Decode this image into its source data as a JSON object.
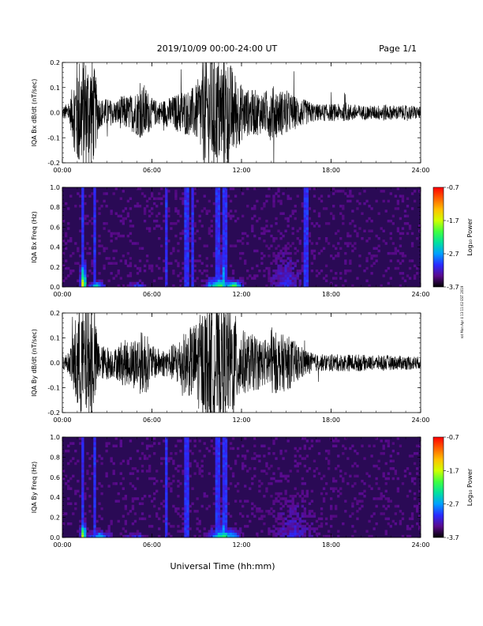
{
  "header": {
    "title": "2019/10/09  00:00-24:00 UT",
    "page_label": "Page 1/1"
  },
  "footer": {
    "xlabel": "Universal Time (hh:mm)",
    "side_note": "rot Mon Apr 4 13:11:02 EST 2019"
  },
  "colors": {
    "trace": "#000000",
    "spectrogram_background": "#2a0a55",
    "colorbar": [
      "#000000",
      "#5a0a8c",
      "#2a2aff",
      "#00a0ff",
      "#00e0a0",
      "#40ff40",
      "#d0ff00",
      "#ffc000",
      "#ff6000",
      "#ff0000"
    ]
  },
  "chart_data": [
    {
      "type": "line",
      "title": "",
      "ylabel": "IQA Bx dB/dt (nT/sec)",
      "xlabel": "",
      "xlim": [
        "00:00",
        "24:00"
      ],
      "ylim": [
        -0.2,
        0.2
      ],
      "x_ticks": [
        "00:00",
        "06:00",
        "12:00",
        "18:00",
        "24:00"
      ],
      "y_ticks": [
        "-0.2",
        "-0.1",
        "0.0",
        "0.1",
        "0.2"
      ],
      "grid": false,
      "series": [
        {
          "x_hours": [
            0,
            0.5,
            1,
            1.5,
            2,
            2.5,
            3,
            3.5,
            4,
            4.5,
            5,
            5.5,
            6,
            6.5,
            7,
            7.5,
            8,
            8.5,
            9,
            9.5,
            10,
            10.5,
            11,
            11.5,
            12,
            12.5,
            13,
            13.5,
            14,
            14.5,
            15,
            15.5,
            16,
            16.5,
            17,
            17.5,
            18,
            18.5,
            19,
            19.5,
            20,
            20.5,
            21,
            21.5,
            22,
            22.5,
            23,
            23.5,
            24
          ],
          "envelope": [
            0.02,
            0.04,
            0.2,
            0.2,
            0.2,
            0.05,
            0.05,
            0.04,
            0.06,
            0.06,
            0.08,
            0.1,
            0.05,
            0.04,
            0.05,
            0.06,
            0.08,
            0.08,
            0.1,
            0.2,
            0.2,
            0.2,
            0.2,
            0.15,
            0.1,
            0.08,
            0.08,
            0.07,
            0.1,
            0.08,
            0.08,
            0.06,
            0.05,
            0.04,
            0.03,
            0.03,
            0.03,
            0.03,
            0.03,
            0.03,
            0.025,
            0.025,
            0.025,
            0.03,
            0.025,
            0.025,
            0.025,
            0.025,
            0.02
          ]
        }
      ]
    },
    {
      "type": "heatmap",
      "title": "",
      "ylabel": "IQA Bx Freq (Hz)",
      "xlabel": "",
      "xlim": [
        "00:00",
        "24:00"
      ],
      "ylim": [
        0.0,
        1.0
      ],
      "x_ticks": [
        "00:00",
        "06:00",
        "12:00",
        "18:00",
        "24:00"
      ],
      "y_ticks": [
        "0.0",
        "0.2",
        "0.4",
        "0.6",
        "0.8",
        "1.0"
      ],
      "colorbar": {
        "label": "Log₁₀ Power",
        "ticks": [
          "-0.7",
          "-1.7",
          "-2.7",
          "-3.7"
        ],
        "range": [
          -3.7,
          -0.7
        ]
      },
      "hot_spots": [
        {
          "center_hour": 1.4,
          "width_hours": 0.5,
          "max_freq": 0.3,
          "level": -1.2
        },
        {
          "center_hour": 2.3,
          "width_hours": 1.5,
          "max_freq": 0.08,
          "level": -2.4
        },
        {
          "center_hour": 5.0,
          "width_hours": 1.5,
          "max_freq": 0.06,
          "level": -2.9
        },
        {
          "center_hour": 10.5,
          "width_hours": 2.5,
          "max_freq": 0.12,
          "level": -2.0
        },
        {
          "center_hour": 10.8,
          "width_hours": 0.6,
          "max_freq": 0.55,
          "level": -2.6
        },
        {
          "center_hour": 11.5,
          "width_hours": 1.5,
          "max_freq": 0.08,
          "level": -1.7
        },
        {
          "center_hour": 15.0,
          "width_hours": 3.0,
          "max_freq": 0.45,
          "level": -3.2
        }
      ],
      "vertical_streaks_hours": [
        1.4,
        2.2,
        7.0,
        8.3,
        8.7,
        10.4,
        10.9,
        16.3
      ]
    },
    {
      "type": "line",
      "title": "",
      "ylabel": "IQA By dB/dt (nT/sec)",
      "xlabel": "",
      "xlim": [
        "00:00",
        "24:00"
      ],
      "ylim": [
        -0.2,
        0.2
      ],
      "x_ticks": [
        "00:00",
        "06:00",
        "12:00",
        "18:00",
        "24:00"
      ],
      "y_ticks": [
        "-0.2",
        "-0.1",
        "0.0",
        "0.1",
        "0.2"
      ],
      "grid": false,
      "series": [
        {
          "x_hours": [
            0,
            0.5,
            1,
            1.5,
            2,
            2.5,
            3,
            3.5,
            4,
            4.5,
            5,
            5.5,
            6,
            6.5,
            7,
            7.5,
            8,
            8.5,
            9,
            9.5,
            10,
            10.5,
            11,
            11.5,
            12,
            12.5,
            13,
            13.5,
            14,
            14.5,
            15,
            15.5,
            16,
            16.5,
            17,
            17.5,
            18,
            18.5,
            19,
            19.5,
            20,
            20.5,
            21,
            21.5,
            22,
            22.5,
            23,
            23.5,
            24
          ],
          "envelope": [
            0.02,
            0.04,
            0.2,
            0.2,
            0.2,
            0.06,
            0.06,
            0.05,
            0.08,
            0.08,
            0.1,
            0.12,
            0.06,
            0.05,
            0.05,
            0.07,
            0.1,
            0.12,
            0.15,
            0.2,
            0.2,
            0.2,
            0.2,
            0.18,
            0.12,
            0.1,
            0.1,
            0.08,
            0.12,
            0.1,
            0.1,
            0.08,
            0.06,
            0.04,
            0.03,
            0.03,
            0.03,
            0.03,
            0.03,
            0.03,
            0.03,
            0.025,
            0.025,
            0.03,
            0.025,
            0.025,
            0.025,
            0.025,
            0.02
          ]
        }
      ]
    },
    {
      "type": "heatmap",
      "title": "",
      "ylabel": "IQA By Freq (Hz)",
      "xlabel": "",
      "xlim": [
        "00:00",
        "24:00"
      ],
      "ylim": [
        0.0,
        1.0
      ],
      "x_ticks": [
        "00:00",
        "06:00",
        "12:00",
        "18:00",
        "24:00"
      ],
      "y_ticks": [
        "0.0",
        "0.2",
        "0.4",
        "0.6",
        "0.8",
        "1.0"
      ],
      "colorbar": {
        "label": "Log₁₀ Power",
        "ticks": [
          "-0.7",
          "-1.7",
          "-2.7",
          "-3.7"
        ],
        "range": [
          -3.7,
          -0.7
        ]
      },
      "hot_spots": [
        {
          "center_hour": 1.4,
          "width_hours": 0.5,
          "max_freq": 0.2,
          "level": -1.4
        },
        {
          "center_hour": 2.5,
          "width_hours": 2.0,
          "max_freq": 0.08,
          "level": -2.5
        },
        {
          "center_hour": 5.0,
          "width_hours": 2.0,
          "max_freq": 0.05,
          "level": -3.0
        },
        {
          "center_hour": 10.8,
          "width_hours": 3.0,
          "max_freq": 0.12,
          "level": -2.2
        },
        {
          "center_hour": 10.8,
          "width_hours": 0.6,
          "max_freq": 0.5,
          "level": -2.8
        },
        {
          "center_hour": 15.5,
          "width_hours": 4.0,
          "max_freq": 0.5,
          "level": -3.3
        }
      ],
      "vertical_streaks_hours": [
        1.4,
        2.2,
        7.0,
        8.3,
        10.4,
        10.9
      ]
    }
  ]
}
